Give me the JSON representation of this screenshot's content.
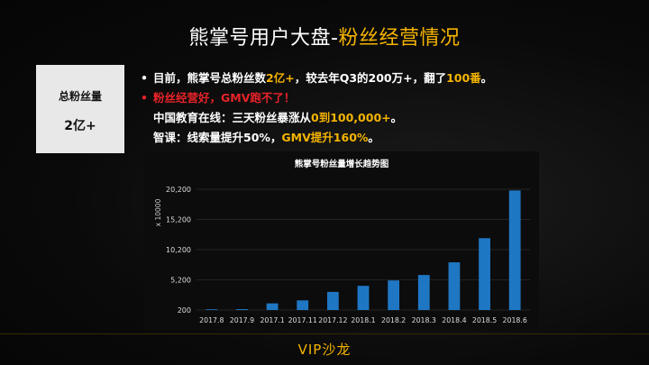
{
  "title": {
    "part1": "熊掌号用户大盘-",
    "part2": "粉丝经营情况"
  },
  "stat": {
    "label": "总粉丝量",
    "value": "2亿+"
  },
  "bullets": {
    "b1_pre": "目前，熊掌号总粉丝数",
    "b1_hl1": "2亿+",
    "b1_mid": "，较去年Q3的200万+，翻了",
    "b1_hl2": "100番",
    "b1_end": "。",
    "b2": "粉丝经营好，GMV跑不了！",
    "b3_pre": "中国教育在线：三天粉丝暴涨从",
    "b3_hl": "0到100,000+",
    "b3_end": "。",
    "b4_pre": "智课：线索量提升50%，",
    "b4_hl": "GMV提升160%",
    "b4_end": "。",
    "bullet_char": "•"
  },
  "colors": {
    "accent": "#f5b400",
    "alert": "#e8232a",
    "bar": "#1f77c4"
  },
  "chart_data": {
    "type": "bar",
    "title": "熊掌号粉丝量增长趋势图",
    "ylabel": "x 10000",
    "categories": [
      "2017.8",
      "2017.9",
      "2017.1",
      "2017.11",
      "2017.12",
      "2018.1",
      "2018.2",
      "2018.3",
      "2018.4",
      "2018.5",
      "2018.6"
    ],
    "values": [
      210,
      350,
      1300,
      1800,
      3200,
      4200,
      5100,
      6000,
      8100,
      12100,
      20000
    ],
    "yticks": [
      "200",
      "5,200",
      "10,200",
      "15,200",
      "20,200"
    ],
    "ylim": [
      200,
      20200
    ],
    "grid": true
  },
  "footer": "VIP沙龙"
}
